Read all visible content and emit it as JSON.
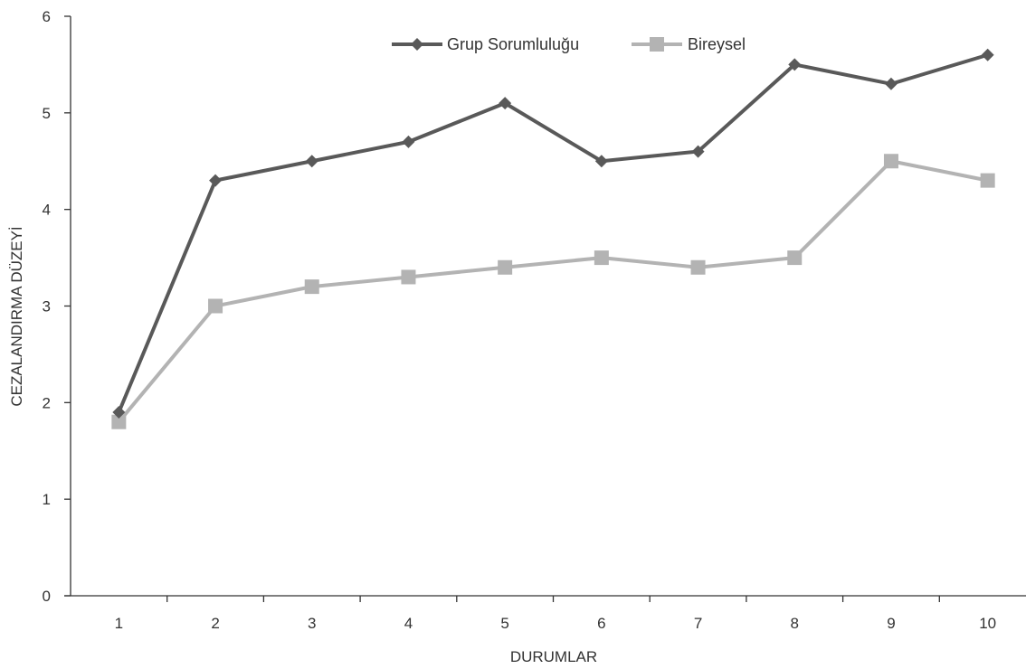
{
  "chart_data": {
    "type": "line",
    "title": "",
    "xlabel": "DURUMLAR",
    "ylabel": "CEZALANDIRMA DÜZEYİ",
    "categories": [
      "1",
      "2",
      "3",
      "4",
      "5",
      "6",
      "7",
      "8",
      "9",
      "10"
    ],
    "ylim": [
      0,
      6
    ],
    "yticks": [
      "0",
      "1",
      "2",
      "3",
      "4",
      "5",
      "6"
    ],
    "grid": false,
    "legend_position": "top-center",
    "series": [
      {
        "name": "Grup Sorumluluğu",
        "marker": "diamond",
        "color": "#595959",
        "values": [
          1.9,
          4.3,
          4.5,
          4.7,
          5.1,
          4.5,
          4.6,
          5.5,
          5.3,
          5.6
        ]
      },
      {
        "name": "Bireysel",
        "marker": "square",
        "color": "#b3b3b3",
        "values": [
          1.8,
          3.0,
          3.2,
          3.3,
          3.4,
          3.5,
          3.4,
          3.5,
          4.5,
          4.3
        ]
      }
    ]
  }
}
